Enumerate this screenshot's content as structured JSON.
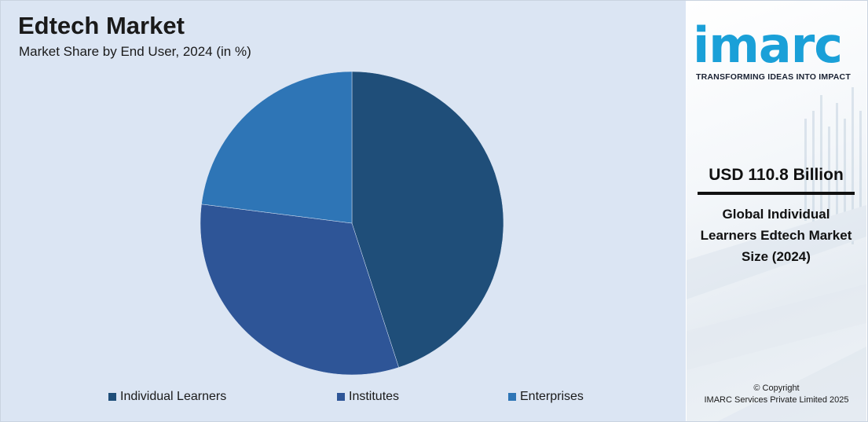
{
  "chart_data": {
    "type": "pie",
    "title": "Edtech Market",
    "subtitle": "Market Share by End User, 2024 (in %)",
    "categories": [
      "Individual Learners",
      "Institutes",
      "Enterprises"
    ],
    "values": [
      45,
      32,
      23
    ],
    "colors": [
      "#1f4e79",
      "#2e5597",
      "#2e75b6"
    ],
    "legend_position": "bottom"
  },
  "side_panel": {
    "logo_text": "imarc",
    "tagline": "TRANSFORMING IDEAS INTO IMPACT",
    "market_value": "USD 110.8 Billion",
    "market_desc": "Global Individual Learners Edtech Market Size (2024)",
    "copyright_line1": "© Copyright",
    "copyright_line2": "IMARC Services Private Limited 2025"
  },
  "colors": {
    "panel_background": "#dbe5f3",
    "brand": "#1aa0d8"
  }
}
